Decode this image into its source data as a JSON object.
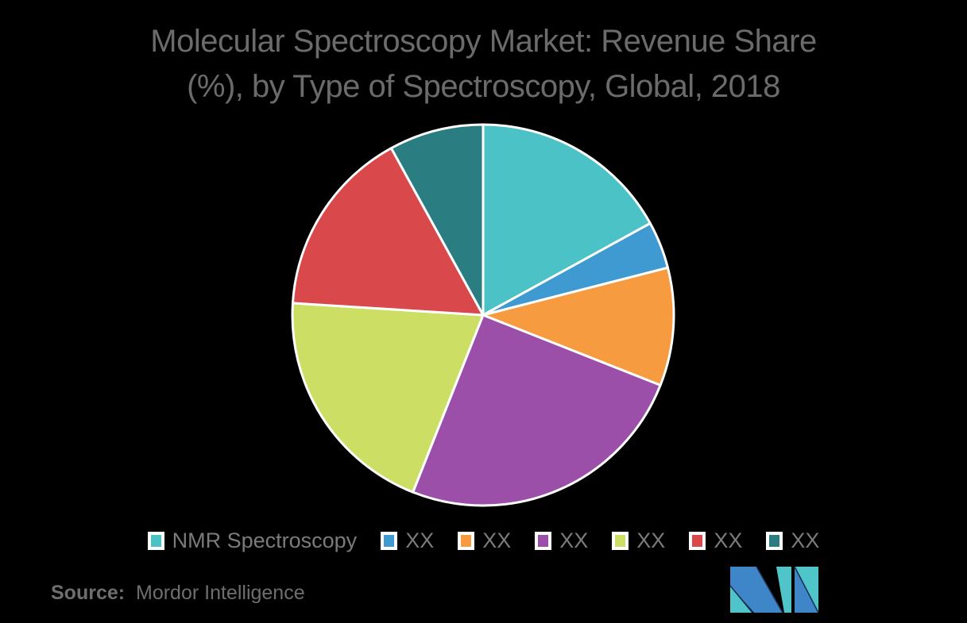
{
  "title": {
    "line1": "Molecular Spectroscopy Market: Revenue Share",
    "line2": "(%), by Type of Spectroscopy, Global, 2018"
  },
  "chart_data": {
    "type": "pie",
    "title": "Molecular Spectroscopy Market: Revenue Share (%), by Type of Spectroscopy, Global, 2018",
    "values_are_percent": true,
    "start_angle_deg": 0,
    "direction": "clockwise",
    "legend_position": "bottom",
    "slices": [
      {
        "label": "NMR Spectroscopy",
        "value": 17,
        "color": "#4BC2C6"
      },
      {
        "label": "XX",
        "value": 4,
        "color": "#3F9AD1"
      },
      {
        "label": "XX",
        "value": 10,
        "color": "#F79B41"
      },
      {
        "label": "XX",
        "value": 25,
        "color": "#9C4FA8"
      },
      {
        "label": "XX",
        "value": 20,
        "color": "#CDDE65"
      },
      {
        "label": "XX",
        "value": 16,
        "color": "#D9484B"
      },
      {
        "label": "XX",
        "value": 8,
        "color": "#2A7D80"
      }
    ]
  },
  "source": {
    "prefix": "Source:",
    "text": "Mordor Intelligence"
  },
  "colors": {
    "background": "#000000",
    "title_text": "#6B6B6B",
    "legend_text": "#7B7B7B",
    "source_text": "#6E6E6E",
    "slice_border": "#FFFFFF"
  },
  "branding": {
    "logo_name": "Mordor Intelligence",
    "logo_blue": "#3E86C8",
    "logo_teal": "#4FC4C9",
    "logo_line": "#1D3050"
  }
}
